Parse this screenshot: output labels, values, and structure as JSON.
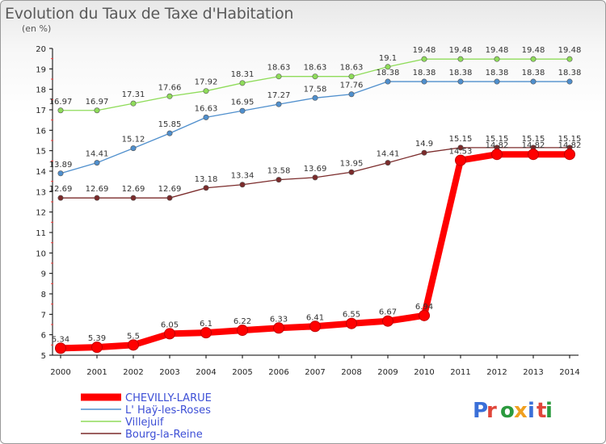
{
  "title": "Evolution du Taux de Taxe d'Habitation",
  "unit_label": "(en %)",
  "logo_text": "Proxiti",
  "chart_data": {
    "type": "line",
    "title": "Evolution du Taux de Taxe d'Habitation",
    "ylabel": "(en %)",
    "xlabel": "",
    "x": [
      2000,
      2001,
      2002,
      2003,
      2004,
      2005,
      2006,
      2007,
      2008,
      2009,
      2010,
      2011,
      2012,
      2013,
      2014
    ],
    "ylim": [
      5,
      20
    ],
    "yticks": [
      5,
      6,
      7,
      8,
      9,
      10,
      11,
      12,
      13,
      14,
      15,
      16,
      17,
      18,
      19,
      20
    ],
    "grid": false,
    "legend": "bottom-left",
    "series": [
      {
        "name": "CHEVILLY-LARUE",
        "color": "#ff0000",
        "values": [
          5.34,
          5.39,
          5.5,
          6.05,
          6.1,
          6.22,
          6.33,
          6.41,
          6.55,
          6.67,
          6.94,
          14.53,
          14.82,
          14.82,
          14.82
        ],
        "labels": [
          "5.34",
          "5.39",
          "5.5",
          "6.05",
          "6.1",
          "6.22",
          "6.33",
          "6.41",
          "6.55",
          "6.67",
          "6.94",
          "14.53",
          "14.82",
          "14.82",
          "14.82"
        ]
      },
      {
        "name": "L' Haÿ-les-Roses",
        "color": "#4f8fcd",
        "values": [
          13.89,
          14.41,
          15.12,
          15.85,
          16.63,
          16.95,
          17.27,
          17.58,
          17.76,
          18.38,
          18.38,
          18.38,
          18.38,
          18.38,
          18.38
        ],
        "labels": [
          "13.89",
          "14.41",
          "15.12",
          "15.85",
          "16.63",
          "16.95",
          "17.27",
          "17.58",
          "17.76",
          "18.38",
          "18.38",
          "18.38",
          "18.38",
          "18.38",
          "18.38"
        ]
      },
      {
        "name": "Villejuif",
        "color": "#8fdc5a",
        "values": [
          16.97,
          16.97,
          17.31,
          17.66,
          17.92,
          18.31,
          18.63,
          18.63,
          18.63,
          19.1,
          19.48,
          19.48,
          19.48,
          19.48,
          19.48
        ],
        "labels": [
          "16.97",
          "16.97",
          "17.31",
          "17.66",
          "17.92",
          "18.31",
          "18.63",
          "18.63",
          "18.63",
          "19.1",
          "19.48",
          "19.48",
          "19.48",
          "19.48",
          "19.48"
        ]
      },
      {
        "name": "Bourg-la-Reine",
        "color": "#7b2b2b",
        "values": [
          12.69,
          12.69,
          12.69,
          12.69,
          13.18,
          13.34,
          13.58,
          13.69,
          13.95,
          14.41,
          14.9,
          15.15,
          15.15,
          15.15,
          15.15
        ],
        "labels": [
          "12.69",
          "12.69",
          "12.69",
          "12.69",
          "13.18",
          "13.34",
          "13.58",
          "13.69",
          "13.95",
          "14.41",
          "14.9",
          "15.15",
          "15.15",
          "15.15",
          "15.15"
        ]
      }
    ]
  }
}
